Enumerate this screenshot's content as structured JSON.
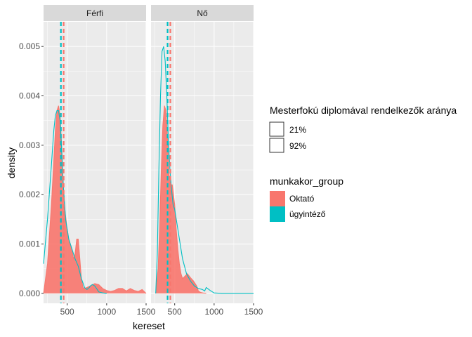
{
  "chart_data": {
    "type": "area",
    "xlabel": "kereset",
    "ylabel": "density",
    "xlim": [
      200,
      1500
    ],
    "ylim": [
      -0.0002,
      0.0055
    ],
    "xticks": [
      500,
      1000,
      1500
    ],
    "xtick_labels": [
      "500",
      "1000",
      "1500"
    ],
    "yticks": [
      0,
      0.001,
      0.002,
      0.003,
      0.004,
      0.005
    ],
    "ytick_labels": [
      "0.000",
      "0.001",
      "0.002",
      "0.003",
      "0.004",
      "0.005"
    ],
    "grid": true,
    "legend_placement": "right",
    "colors": {
      "oktato": "#F8766D",
      "ugyintezo": "#00BFC4",
      "panel_bg": "#EBEBEB",
      "strip_bg": "#D9D9D9"
    },
    "panels": [
      {
        "strip": "Férfi",
        "vlines": [
          {
            "series": "Oktató",
            "x": 455
          },
          {
            "series": "ügyintéző",
            "x": 420
          }
        ],
        "series": [
          {
            "name": "Oktató",
            "x": [
              200,
              250,
              300,
              330,
              350,
              370,
              390,
              410,
              430,
              450,
              470,
              500,
              520,
              540,
              560,
              580,
              600,
              620,
              640,
              660,
              680,
              700,
              720,
              750,
              800,
              850,
              900,
              950,
              1000,
              1050,
              1100,
              1150,
              1200,
              1250,
              1300,
              1350,
              1400,
              1450,
              1500
            ],
            "y": [
              0,
              0.0006,
              0.0018,
              0.0027,
              0.0033,
              0.0037,
              0.0038,
              0.0036,
              0.003,
              0.0022,
              0.0017,
              0.0013,
              0.0011,
              0.001,
              0.0009,
              0.0007,
              0.0008,
              0.0011,
              0.0011,
              0.0007,
              0.0003,
              0.00012,
              0.0001,
              0.00012,
              0.00016,
              0.0002,
              0.00018,
              0.0001,
              6e-05,
              4e-05,
              6e-05,
              0.0001,
              0.0001,
              5e-05,
              0.0001,
              6e-05,
              4e-05,
              8e-05,
              0
            ]
          },
          {
            "name": "ügyintéző",
            "x": [
              200,
              250,
              300,
              330,
              350,
              370,
              390,
              410,
              430,
              450,
              480,
              520,
              560,
              600,
              640,
              680,
              720,
              750,
              780,
              800,
              820,
              850,
              880,
              900,
              950,
              1000
            ],
            "y": [
              0.0006,
              0.0015,
              0.0026,
              0.0033,
              0.0036,
              0.0037,
              0.0037,
              0.0035,
              0.0029,
              0.0022,
              0.0015,
              0.0011,
              0.0009,
              0.0007,
              0.00055,
              0.0003,
              0.00012,
              8e-05,
              0.00012,
              0.00016,
              0.00018,
              0.00015,
              8e-05,
              3e-05,
              1e-05,
              0
            ]
          }
        ]
      },
      {
        "strip": "Nő",
        "vlines": [
          {
            "series": "Oktató",
            "x": 445
          },
          {
            "series": "ügyintéző",
            "x": 410
          }
        ],
        "series": [
          {
            "name": "Oktató",
            "x": [
              260,
              290,
              310,
              330,
              350,
              370,
              390,
              410,
              430,
              450,
              470,
              500,
              520,
              540,
              560,
              580,
              600,
              630,
              660,
              700,
              740,
              780,
              800,
              830,
              860,
              900
            ],
            "y": [
              0,
              0.0005,
              0.0014,
              0.0025,
              0.0034,
              0.0038,
              0.0037,
              0.0031,
              0.0024,
              0.0022,
              0.0022,
              0.0018,
              0.0013,
              0.0009,
              0.0006,
              0.0004,
              0.0003,
              0.00035,
              0.0004,
              0.00032,
              0.00025,
              0.00015,
              5e-05,
              2e-05,
              1e-05,
              0
            ]
          },
          {
            "name": "ügyintéző",
            "x": [
              260,
              280,
              300,
              320,
              340,
              360,
              380,
              400,
              420,
              440,
              460,
              480,
              500,
              530,
              560,
              600,
              650,
              700,
              750,
              800,
              850,
              880,
              900,
              950,
              1000,
              1100,
              1200,
              1300,
              1400,
              1500
            ],
            "y": [
              0,
              0.0008,
              0.0025,
              0.004,
              0.0049,
              0.005,
              0.0047,
              0.004,
              0.0031,
              0.0025,
              0.0021,
              0.0018,
              0.0017,
              0.0014,
              0.0011,
              0.0007,
              0.0004,
              0.00025,
              0.00015,
              0.0001,
              8e-05,
              5e-05,
              0.00012,
              6e-05,
              1e-05,
              0,
              0,
              0,
              0,
              0
            ]
          }
        ]
      }
    ]
  },
  "legends": {
    "fill": {
      "title": "Mesterfokú diplomával rendelkezők aránya",
      "items": [
        {
          "label": "21%"
        },
        {
          "label": "92%"
        }
      ]
    },
    "color": {
      "title": "munkakor_group",
      "items": [
        {
          "label": "Oktató",
          "color": "#F8766D"
        },
        {
          "label": "ügyintéző",
          "color": "#00BFC4"
        }
      ]
    }
  }
}
